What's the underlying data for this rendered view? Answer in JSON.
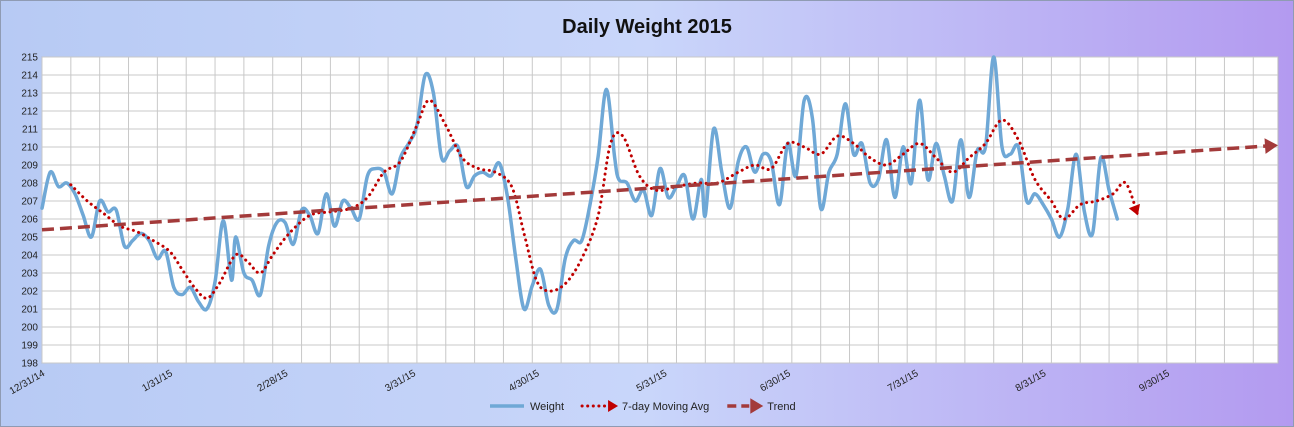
{
  "chart_data": {
    "type": "line",
    "title": "Daily Weight 2015",
    "xlabel": "",
    "ylabel": "",
    "ylim": [
      198,
      215
    ],
    "xlim": [
      "2014-12-31",
      "2015-10-27"
    ],
    "x_tick_labels": [
      "12/31/14",
      "1/31/15",
      "2/28/15",
      "3/31/15",
      "4/30/15",
      "5/31/15",
      "6/30/15",
      "7/31/15",
      "8/31/15",
      "9/30/15"
    ],
    "y_tick_labels": [
      "198",
      "199",
      "200",
      "201",
      "202",
      "203",
      "204",
      "205",
      "206",
      "207",
      "208",
      "209",
      "210",
      "211",
      "212",
      "213",
      "214",
      "215"
    ],
    "grid": true,
    "legend_position": "bottom",
    "series": [
      {
        "name": "Weight",
        "color": "#6fa8d6",
        "style": "solid",
        "points": [
          [
            "2014-12-31",
            206.6
          ],
          [
            "2015-01-02",
            208.6
          ],
          [
            "2015-01-04",
            207.8
          ],
          [
            "2015-01-06",
            208.0
          ],
          [
            "2015-01-08",
            207.4
          ],
          [
            "2015-01-10",
            206.2
          ],
          [
            "2015-01-12",
            205.0
          ],
          [
            "2015-01-14",
            207.0
          ],
          [
            "2015-01-16",
            206.4
          ],
          [
            "2015-01-18",
            206.5
          ],
          [
            "2015-01-20",
            204.5
          ],
          [
            "2015-01-22",
            204.8
          ],
          [
            "2015-01-24",
            205.2
          ],
          [
            "2015-01-26",
            204.8
          ],
          [
            "2015-01-28",
            203.8
          ],
          [
            "2015-01-30",
            204.2
          ],
          [
            "2015-02-01",
            202.2
          ],
          [
            "2015-02-03",
            201.8
          ],
          [
            "2015-02-05",
            202.2
          ],
          [
            "2015-02-07",
            201.4
          ],
          [
            "2015-02-09",
            201.0
          ],
          [
            "2015-02-11",
            202.5
          ],
          [
            "2015-02-13",
            205.9
          ],
          [
            "2015-02-15",
            202.6
          ],
          [
            "2015-02-16",
            205.0
          ],
          [
            "2015-02-18",
            203.0
          ],
          [
            "2015-02-20",
            202.6
          ],
          [
            "2015-02-22",
            201.8
          ],
          [
            "2015-02-24",
            204.5
          ],
          [
            "2015-02-26",
            205.8
          ],
          [
            "2015-02-28",
            205.8
          ],
          [
            "2015-03-02",
            204.6
          ],
          [
            "2015-03-04",
            206.5
          ],
          [
            "2015-03-06",
            206.2
          ],
          [
            "2015-03-08",
            205.2
          ],
          [
            "2015-03-10",
            207.4
          ],
          [
            "2015-03-12",
            205.6
          ],
          [
            "2015-03-14",
            207.0
          ],
          [
            "2015-03-16",
            206.6
          ],
          [
            "2015-03-18",
            206.0
          ],
          [
            "2015-03-20",
            208.4
          ],
          [
            "2015-03-22",
            208.8
          ],
          [
            "2015-03-24",
            208.6
          ],
          [
            "2015-03-26",
            207.4
          ],
          [
            "2015-03-28",
            209.4
          ],
          [
            "2015-03-30",
            210.2
          ],
          [
            "2015-04-01",
            211.2
          ],
          [
            "2015-04-03",
            214.0
          ],
          [
            "2015-04-05",
            213.0
          ],
          [
            "2015-04-07",
            209.4
          ],
          [
            "2015-04-09",
            209.8
          ],
          [
            "2015-04-11",
            210.0
          ],
          [
            "2015-04-13",
            207.8
          ],
          [
            "2015-04-15",
            208.4
          ],
          [
            "2015-04-17",
            208.6
          ],
          [
            "2015-04-19",
            208.4
          ],
          [
            "2015-04-21",
            209.1
          ],
          [
            "2015-04-23",
            207.2
          ],
          [
            "2015-04-25",
            203.8
          ],
          [
            "2015-04-27",
            201.0
          ],
          [
            "2015-04-29",
            202.3
          ],
          [
            "2015-05-01",
            203.2
          ],
          [
            "2015-05-03",
            201.2
          ],
          [
            "2015-05-05",
            201.0
          ],
          [
            "2015-05-07",
            203.8
          ],
          [
            "2015-05-09",
            204.8
          ],
          [
            "2015-05-11",
            204.8
          ],
          [
            "2015-05-13",
            206.8
          ],
          [
            "2015-05-15",
            209.5
          ],
          [
            "2015-05-17",
            213.2
          ],
          [
            "2015-05-19",
            209.4
          ],
          [
            "2015-05-20",
            208.2
          ],
          [
            "2015-05-22",
            208.0
          ],
          [
            "2015-05-24",
            207.0
          ],
          [
            "2015-05-26",
            207.6
          ],
          [
            "2015-05-28",
            206.2
          ],
          [
            "2015-05-30",
            208.8
          ],
          [
            "2015-06-01",
            207.2
          ],
          [
            "2015-06-03",
            207.8
          ],
          [
            "2015-06-05",
            208.4
          ],
          [
            "2015-06-07",
            206.0
          ],
          [
            "2015-06-09",
            208.2
          ],
          [
            "2015-06-10",
            206.2
          ],
          [
            "2015-06-12",
            211.0
          ],
          [
            "2015-06-14",
            208.6
          ],
          [
            "2015-06-16",
            206.6
          ],
          [
            "2015-06-18",
            209.2
          ],
          [
            "2015-06-20",
            210.0
          ],
          [
            "2015-06-22",
            208.6
          ],
          [
            "2015-06-24",
            209.6
          ],
          [
            "2015-06-26",
            209.2
          ],
          [
            "2015-06-28",
            206.8
          ],
          [
            "2015-06-30",
            210.2
          ],
          [
            "2015-07-02",
            208.4
          ],
          [
            "2015-07-04",
            212.6
          ],
          [
            "2015-07-06",
            211.6
          ],
          [
            "2015-07-08",
            206.6
          ],
          [
            "2015-07-10",
            208.6
          ],
          [
            "2015-07-12",
            209.6
          ],
          [
            "2015-07-14",
            212.4
          ],
          [
            "2015-07-16",
            209.6
          ],
          [
            "2015-07-18",
            210.2
          ],
          [
            "2015-07-20",
            208.0
          ],
          [
            "2015-07-22",
            208.2
          ],
          [
            "2015-07-24",
            210.4
          ],
          [
            "2015-07-26",
            207.2
          ],
          [
            "2015-07-28",
            210.0
          ],
          [
            "2015-07-30",
            208.0
          ],
          [
            "2015-08-01",
            212.6
          ],
          [
            "2015-08-03",
            208.2
          ],
          [
            "2015-08-05",
            210.2
          ],
          [
            "2015-08-07",
            208.4
          ],
          [
            "2015-08-09",
            207.0
          ],
          [
            "2015-08-11",
            210.4
          ],
          [
            "2015-08-13",
            207.2
          ],
          [
            "2015-08-15",
            209.8
          ],
          [
            "2015-08-17",
            210.0
          ],
          [
            "2015-08-19",
            215.0
          ],
          [
            "2015-08-21",
            210.0
          ],
          [
            "2015-08-23",
            209.6
          ],
          [
            "2015-08-25",
            210.0
          ],
          [
            "2015-08-27",
            207.0
          ],
          [
            "2015-08-29",
            207.4
          ],
          [
            "2015-08-31",
            206.8
          ],
          [
            "2015-09-02",
            206.0
          ],
          [
            "2015-09-04",
            205.0
          ],
          [
            "2015-09-06",
            206.6
          ],
          [
            "2015-09-08",
            209.6
          ],
          [
            "2015-09-10",
            206.4
          ],
          [
            "2015-09-12",
            205.2
          ],
          [
            "2015-09-14",
            209.4
          ],
          [
            "2015-09-16",
            207.6
          ],
          [
            "2015-09-18",
            206.0
          ]
        ]
      },
      {
        "name": "7-day Moving Avg",
        "color": "#c00000",
        "style": "dotted",
        "points": [
          [
            "2015-01-07",
            207.9
          ],
          [
            "2015-01-11",
            207.0
          ],
          [
            "2015-01-15",
            206.3
          ],
          [
            "2015-01-19",
            205.6
          ],
          [
            "2015-01-23",
            205.3
          ],
          [
            "2015-01-27",
            204.8
          ],
          [
            "2015-01-31",
            204.2
          ],
          [
            "2015-02-03",
            203.2
          ],
          [
            "2015-02-06",
            202.2
          ],
          [
            "2015-02-09",
            201.6
          ],
          [
            "2015-02-12",
            202.4
          ],
          [
            "2015-02-16",
            204.0
          ],
          [
            "2015-02-19",
            203.6
          ],
          [
            "2015-02-22",
            203.0
          ],
          [
            "2015-02-25",
            204.0
          ],
          [
            "2015-03-01",
            205.2
          ],
          [
            "2015-03-06",
            206.2
          ],
          [
            "2015-03-11",
            206.4
          ],
          [
            "2015-03-16",
            206.6
          ],
          [
            "2015-03-20",
            207.2
          ],
          [
            "2015-03-24",
            208.6
          ],
          [
            "2015-03-28",
            209.2
          ],
          [
            "2015-04-01",
            211.2
          ],
          [
            "2015-04-04",
            212.6
          ],
          [
            "2015-04-08",
            211.2
          ],
          [
            "2015-04-12",
            209.4
          ],
          [
            "2015-04-16",
            208.8
          ],
          [
            "2015-04-20",
            208.6
          ],
          [
            "2015-04-24",
            207.8
          ],
          [
            "2015-04-27",
            205.2
          ],
          [
            "2015-04-30",
            202.6
          ],
          [
            "2015-05-03",
            202.0
          ],
          [
            "2015-05-07",
            202.4
          ],
          [
            "2015-05-11",
            203.8
          ],
          [
            "2015-05-15",
            206.2
          ],
          [
            "2015-05-18",
            210.2
          ],
          [
            "2015-05-21",
            210.6
          ],
          [
            "2015-05-25",
            208.4
          ],
          [
            "2015-05-29",
            207.6
          ],
          [
            "2015-06-03",
            207.8
          ],
          [
            "2015-06-08",
            208.0
          ],
          [
            "2015-06-13",
            208.0
          ],
          [
            "2015-06-18",
            208.6
          ],
          [
            "2015-06-22",
            209.0
          ],
          [
            "2015-06-26",
            208.8
          ],
          [
            "2015-06-30",
            210.2
          ],
          [
            "2015-07-04",
            210.0
          ],
          [
            "2015-07-08",
            209.6
          ],
          [
            "2015-07-12",
            210.6
          ],
          [
            "2015-07-16",
            210.2
          ],
          [
            "2015-07-20",
            209.4
          ],
          [
            "2015-07-24",
            209.0
          ],
          [
            "2015-07-28",
            209.6
          ],
          [
            "2015-08-01",
            210.2
          ],
          [
            "2015-08-05",
            209.4
          ],
          [
            "2015-08-09",
            208.6
          ],
          [
            "2015-08-13",
            209.4
          ],
          [
            "2015-08-17",
            210.2
          ],
          [
            "2015-08-21",
            211.5
          ],
          [
            "2015-08-25",
            210.4
          ],
          [
            "2015-08-29",
            208.2
          ],
          [
            "2015-09-02",
            207.0
          ],
          [
            "2015-09-05",
            206.0
          ],
          [
            "2015-09-09",
            206.8
          ],
          [
            "2015-09-13",
            207.0
          ],
          [
            "2015-09-17",
            207.4
          ],
          [
            "2015-09-20",
            208.0
          ],
          [
            "2015-09-23",
            206.2
          ]
        ]
      },
      {
        "name": "Trend",
        "color": "#a33a3a",
        "style": "dashed",
        "points": [
          [
            "2014-12-31",
            205.4
          ],
          [
            "2015-10-27",
            210.1
          ]
        ]
      }
    ]
  }
}
